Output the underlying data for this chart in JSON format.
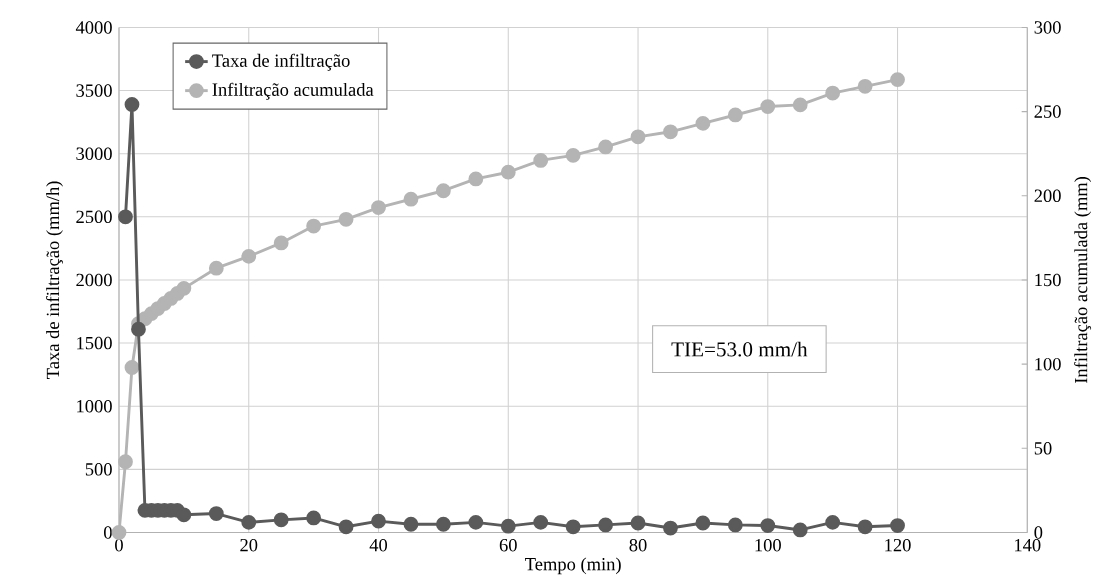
{
  "chart_data": {
    "type": "line",
    "xlabel": "Tempo (min)",
    "ylabel": "Taxa de infiltração (mm/h)",
    "y2label": "Infiltração acumulada (mm)",
    "series": [
      {
        "name": "Taxa de infiltração",
        "color": "#5a5a5a",
        "x": [
          1,
          2,
          3,
          4,
          5,
          6,
          7,
          8,
          9,
          10,
          15,
          20,
          25,
          30,
          35,
          40,
          45,
          50,
          55,
          60,
          65,
          70,
          75,
          80,
          85,
          90,
          95,
          100,
          105,
          110,
          115,
          120
        ],
        "values": [
          2500,
          3390,
          1610,
          175,
          175,
          175,
          175,
          175,
          175,
          140,
          150,
          80,
          100,
          115,
          45,
          90,
          65,
          65,
          80,
          50,
          80,
          45,
          60,
          75,
          35,
          75,
          60,
          55,
          20,
          80,
          45,
          55
        ]
      },
      {
        "name": "Infiltração acumulada",
        "color": "#b4b4b4",
        "axis": "y2",
        "x": [
          0,
          1,
          2,
          3,
          4,
          5,
          6,
          7,
          8,
          9,
          10,
          15,
          20,
          25,
          30,
          35,
          40,
          45,
          50,
          55,
          60,
          65,
          70,
          75,
          80,
          85,
          90,
          95,
          100,
          105,
          110,
          115,
          120
        ],
        "values": [
          0,
          42,
          98,
          124,
          127,
          130,
          133,
          136,
          139,
          142,
          145,
          157,
          164,
          172,
          182,
          186,
          193,
          198,
          203,
          210,
          214,
          221,
          224,
          229,
          235,
          238,
          243,
          248,
          253,
          254,
          261,
          265,
          269
        ]
      }
    ],
    "xlim": [
      0,
      140
    ],
    "xticks": [
      0,
      20,
      40,
      60,
      80,
      100,
      120,
      140
    ],
    "ylim": [
      0,
      4000
    ],
    "yticks": [
      0,
      500,
      1000,
      1500,
      2000,
      2500,
      3000,
      3500,
      4000
    ],
    "y2lim": [
      0,
      300
    ],
    "y2ticks": [
      0,
      50,
      100,
      150,
      200,
      250,
      300
    ],
    "annotations": [
      "TIE=53.0 mm/h"
    ],
    "grid": true,
    "legend": "top left",
    "marker": "circle",
    "line_style": "solid"
  }
}
